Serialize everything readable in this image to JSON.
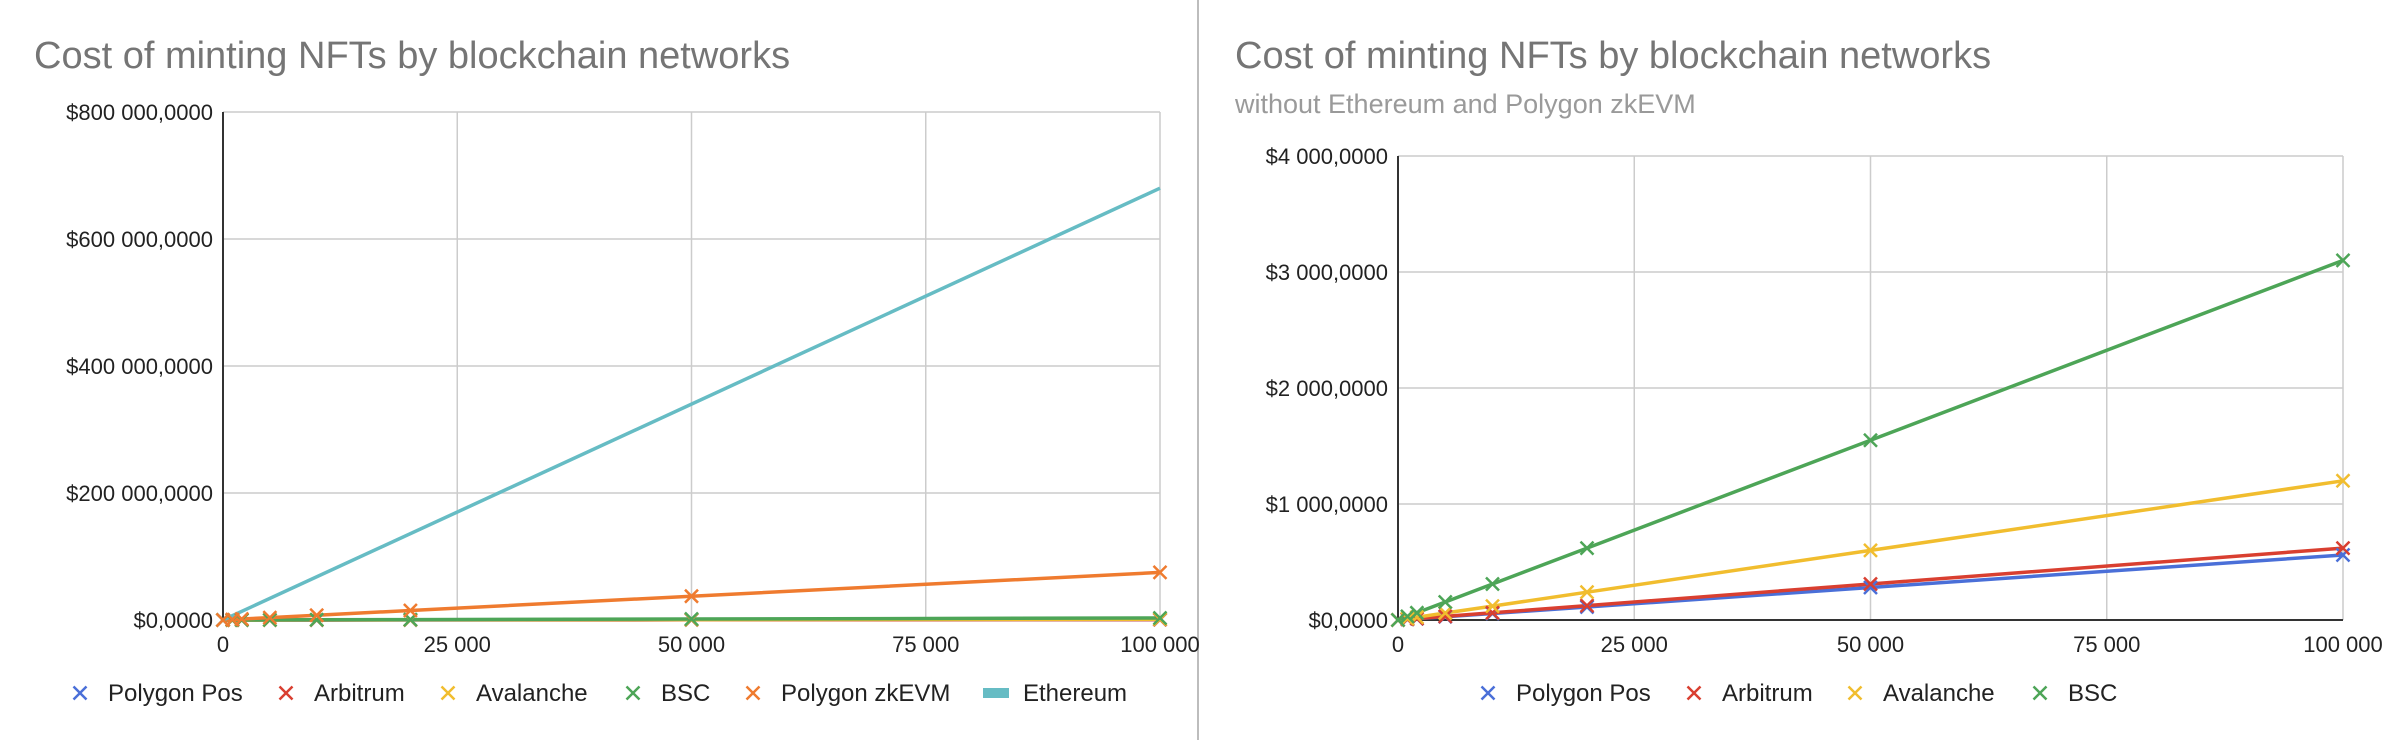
{
  "chart_data": [
    {
      "type": "line",
      "title": "Cost of minting NFTs by blockchain networks",
      "subtitle": "",
      "xlabel": "",
      "ylabel": "",
      "xlim": [
        0,
        100000
      ],
      "ylim": [
        0,
        800000000
      ],
      "x_ticks": [
        "0",
        "25 000",
        "50 000",
        "75 000",
        "100 000"
      ],
      "y_ticks": [
        "$0,0000",
        "$200 000,0000",
        "$400 000,0000",
        "$600 000,0000",
        "$800 000,0000"
      ],
      "grid": true,
      "legend_position": "bottom",
      "series": [
        {
          "name": "Polygon Pos",
          "color": "#4a6fd8",
          "marker": "x",
          "x": [
            0,
            1000,
            2000,
            5000,
            10000,
            20000,
            50000,
            100000
          ],
          "y": [
            0,
            5600,
            11200,
            28000,
            56000,
            112000,
            280000,
            560000
          ]
        },
        {
          "name": "Arbitrum",
          "color": "#d93f30",
          "marker": "x",
          "x": [
            0,
            1000,
            2000,
            5000,
            10000,
            20000,
            50000,
            100000
          ],
          "y": [
            0,
            6200,
            12400,
            31000,
            62000,
            124000,
            310000,
            620000
          ]
        },
        {
          "name": "Avalanche",
          "color": "#f1bd2e",
          "marker": "x",
          "x": [
            0,
            1000,
            2000,
            5000,
            10000,
            20000,
            50000,
            100000
          ],
          "y": [
            0,
            12000,
            24000,
            60000,
            120000,
            240000,
            600000,
            1200000
          ]
        },
        {
          "name": "BSC",
          "color": "#4da557",
          "marker": "x",
          "x": [
            0,
            1000,
            2000,
            5000,
            10000,
            20000,
            50000,
            100000
          ],
          "y": [
            0,
            31000,
            62000,
            155000,
            310000,
            620000,
            1550000,
            3100000
          ]
        },
        {
          "name": "Polygon zkEVM",
          "color": "#ef7b2f",
          "marker": "x",
          "x": [
            0,
            1000,
            2000,
            5000,
            10000,
            20000,
            50000,
            100000
          ],
          "y": [
            0,
            750000,
            1500000,
            3750000,
            7500000,
            15000000,
            37500000,
            75000000
          ]
        },
        {
          "name": "Ethereum",
          "color": "#66bcc4",
          "marker": "line",
          "x": [
            0,
            100000
          ],
          "y": [
            0,
            680000000
          ]
        }
      ]
    },
    {
      "type": "line",
      "title": "Cost of minting NFTs by blockchain networks",
      "subtitle": "without Ethereum and Polygon zkEVM",
      "xlabel": "",
      "ylabel": "",
      "xlim": [
        0,
        100000
      ],
      "ylim": [
        0,
        4000000
      ],
      "x_ticks": [
        "0",
        "25 000",
        "50 000",
        "75 000",
        "100 000"
      ],
      "y_ticks": [
        "$0,0000",
        "$1 000,0000",
        "$2 000,0000",
        "$3 000,0000",
        "$4 000,0000"
      ],
      "grid": true,
      "legend_position": "bottom",
      "series": [
        {
          "name": "Polygon Pos",
          "color": "#4a6fd8",
          "marker": "x",
          "x": [
            0,
            1000,
            2000,
            5000,
            10000,
            20000,
            50000,
            100000
          ],
          "y": [
            0,
            5600,
            11200,
            28000,
            56000,
            112000,
            280000,
            560000
          ]
        },
        {
          "name": "Arbitrum",
          "color": "#d93f30",
          "marker": "x",
          "x": [
            0,
            1000,
            2000,
            5000,
            10000,
            20000,
            50000,
            100000
          ],
          "y": [
            0,
            6200,
            12400,
            31000,
            62000,
            124000,
            310000,
            620000
          ]
        },
        {
          "name": "Avalanche",
          "color": "#f1bd2e",
          "marker": "x",
          "x": [
            0,
            1000,
            2000,
            5000,
            10000,
            20000,
            50000,
            100000
          ],
          "y": [
            0,
            12000,
            24000,
            60000,
            120000,
            240000,
            600000,
            1200000
          ]
        },
        {
          "name": "BSC",
          "color": "#4da557",
          "marker": "x",
          "x": [
            0,
            1000,
            2000,
            5000,
            10000,
            20000,
            50000,
            100000
          ],
          "y": [
            0,
            31000,
            62000,
            155000,
            310000,
            620000,
            1550000,
            3100000
          ]
        }
      ]
    }
  ]
}
